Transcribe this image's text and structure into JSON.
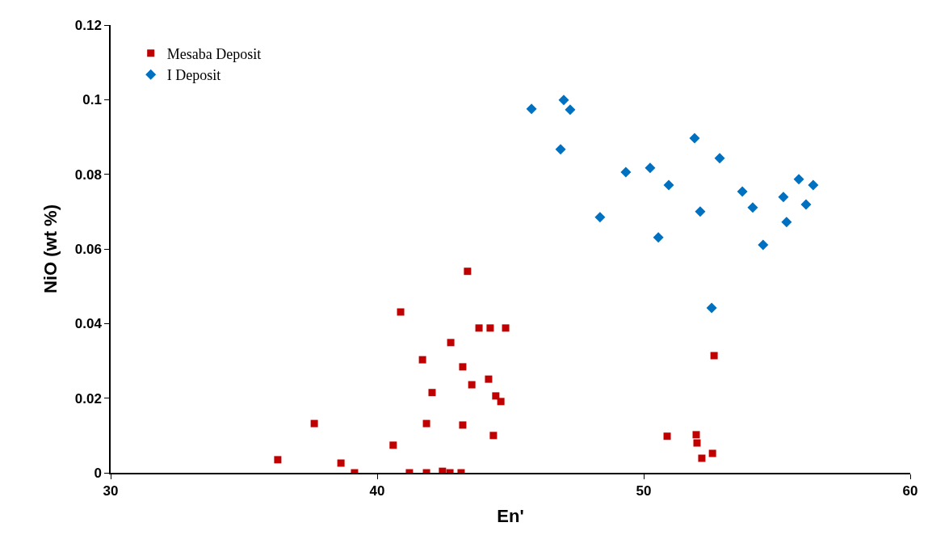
{
  "chart_data": {
    "type": "scatter",
    "xlabel": "En'",
    "ylabel": "NiO (wt %)",
    "xlim": [
      30,
      60
    ],
    "xticks": [
      30,
      40,
      50,
      60
    ],
    "ylim": [
      0,
      0.12
    ],
    "yticks": [
      0,
      0.02,
      0.04,
      0.06,
      0.08,
      0.1,
      0.12
    ],
    "grid": false,
    "legend": "top left",
    "series": [
      {
        "name": "Mesaba Deposit",
        "color": "#c00000",
        "marker": "square",
        "x": [
          36.27,
          37.64,
          38.64,
          39.15,
          40.6,
          40.88,
          41.21,
          41.7,
          41.85,
          41.85,
          42.06,
          42.45,
          42.73,
          42.76,
          43.15,
          43.21,
          43.21,
          43.39,
          43.55,
          43.82,
          44.18,
          44.24,
          44.36,
          44.45,
          44.64,
          44.82,
          50.88,
          51.97,
          52.0,
          52.18,
          52.58,
          52.64
        ],
        "values": [
          0.0035,
          0.0132,
          0.0026,
          0,
          0.0074,
          0.0431,
          0,
          0.0303,
          0,
          0.0132,
          0.0215,
          0.0004,
          0,
          0.0349,
          0,
          0.0284,
          0.0128,
          0.054,
          0.0236,
          0.0388,
          0.0251,
          0.0388,
          0.01,
          0.0206,
          0.0191,
          0.0388,
          0.0098,
          0.0102,
          0.008,
          0.0039,
          0.0052,
          0.0314
        ]
      },
      {
        "name": "I Deposit",
        "color": "#0070c0",
        "marker": "diamond",
        "x": [
          45.79,
          46.88,
          47.0,
          47.24,
          48.36,
          49.33,
          50.24,
          50.55,
          50.94,
          51.91,
          52.12,
          52.55,
          52.85,
          53.7,
          54.09,
          54.48,
          55.24,
          55.36,
          55.82,
          56.09,
          56.36
        ],
        "values": [
          0.0975,
          0.0867,
          0.0999,
          0.0973,
          0.0685,
          0.0806,
          0.0817,
          0.0631,
          0.0771,
          0.0897,
          0.07,
          0.0442,
          0.0843,
          0.0754,
          0.0711,
          0.0611,
          0.0739,
          0.0672,
          0.0787,
          0.0719,
          0.0771
        ]
      }
    ]
  }
}
